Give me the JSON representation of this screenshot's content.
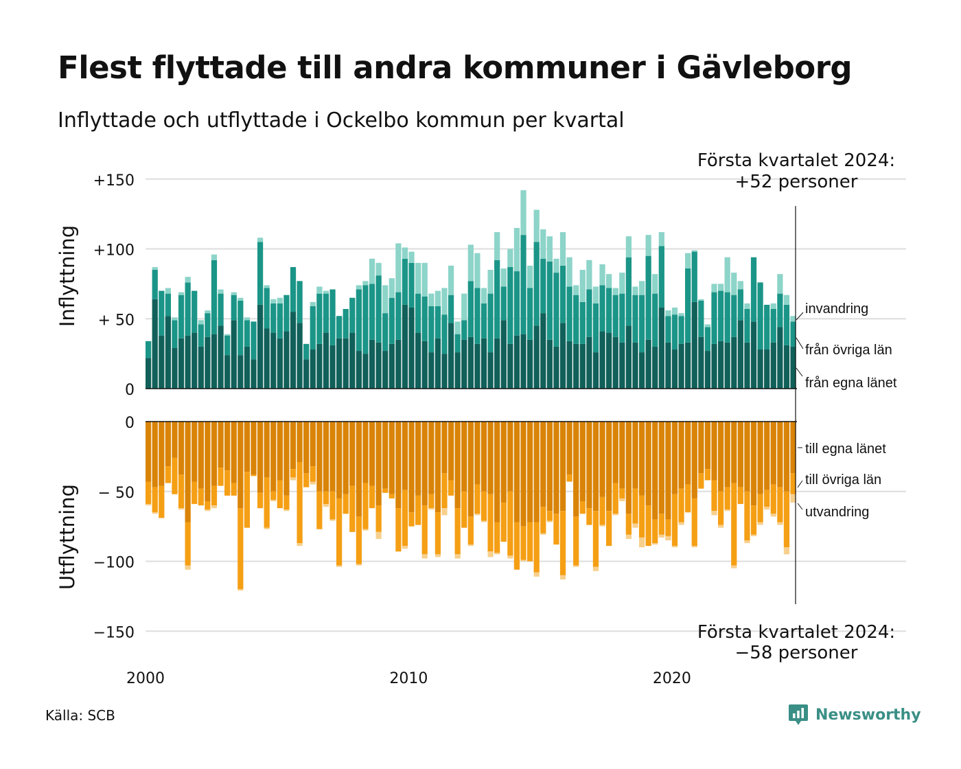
{
  "title": "Flest flyttade till andra kommuner i Gävleborg",
  "subtitle": "Inflyttade och utflyttade i Ockelbo kommun per kvartal",
  "source": "Källa: SCB",
  "brand": "Newsworthy",
  "colors": {
    "in_egna": "#11605a",
    "in_ovriga": "#1b9587",
    "in_invandring": "#8dd4c9",
    "out_egna": "#d98408",
    "out_ovriga": "#f59f15",
    "out_utvandring": "#f7d08e",
    "grid": "#dddddd",
    "brand": "#3a8f86"
  },
  "chart_data": [
    {
      "type": "bar",
      "stacked": true,
      "ylabel": "Inflyttning",
      "ylim": [
        0,
        150
      ],
      "yticks": [
        {
          "value": 0,
          "label": "0"
        },
        {
          "value": 50,
          "label": "+ 50"
        },
        {
          "value": 100,
          "label": "+100"
        },
        {
          "value": 150,
          "label": "+150"
        }
      ],
      "annotation": [
        "Första kvartalet 2024:",
        "+52 personer"
      ],
      "series": [
        {
          "name": "från egna länet",
          "values": [
            22,
            64,
            38,
            52,
            29,
            36,
            38,
            40,
            30,
            37,
            39,
            45,
            24,
            49,
            24,
            30,
            21,
            60,
            43,
            40,
            36,
            41,
            55,
            47,
            21,
            28,
            32,
            40,
            31,
            36,
            36,
            40,
            27,
            25,
            35,
            33,
            27,
            32,
            35,
            60,
            58,
            40,
            34,
            26,
            36,
            25,
            47,
            26,
            35,
            37,
            32,
            36,
            26,
            36,
            49,
            32,
            38,
            39,
            35,
            45,
            54,
            35,
            30,
            47,
            34,
            32,
            32,
            37,
            26,
            41,
            40,
            37,
            33,
            45,
            33,
            26,
            35,
            30,
            58,
            33,
            28,
            32,
            33,
            62,
            37,
            27,
            32,
            34,
            33,
            37,
            49,
            33,
            48,
            28,
            28,
            33,
            44,
            31,
            30
          ]
        },
        {
          "name": "från övriga län",
          "values": [
            12,
            21,
            32,
            16,
            20,
            31,
            38,
            30,
            16,
            17,
            53,
            23,
            14,
            18,
            39,
            19,
            27,
            45,
            29,
            21,
            25,
            26,
            32,
            30,
            11,
            31,
            36,
            28,
            40,
            16,
            21,
            25,
            44,
            49,
            40,
            48,
            27,
            33,
            34,
            33,
            32,
            28,
            32,
            33,
            23,
            28,
            20,
            13,
            14,
            40,
            40,
            25,
            42,
            56,
            24,
            55,
            46,
            71,
            37,
            60,
            39,
            56,
            53,
            41,
            39,
            35,
            30,
            34,
            35,
            33,
            32,
            30,
            35,
            49,
            34,
            41,
            60,
            38,
            44,
            19,
            25,
            20,
            53,
            36,
            26,
            17,
            37,
            36,
            36,
            30,
            22,
            24,
            46,
            48,
            32,
            24,
            24,
            29,
            18
          ]
        },
        {
          "name": "invandring",
          "values": [
            0,
            2,
            0,
            4,
            2,
            2,
            4,
            0,
            3,
            2,
            4,
            3,
            1,
            2,
            2,
            2,
            0,
            3,
            2,
            3,
            4,
            0,
            0,
            0,
            0,
            3,
            5,
            2,
            0,
            0,
            0,
            0,
            3,
            3,
            18,
            9,
            20,
            14,
            35,
            8,
            8,
            22,
            24,
            9,
            11,
            19,
            21,
            9,
            19,
            26,
            25,
            11,
            17,
            20,
            13,
            13,
            31,
            32,
            16,
            23,
            21,
            18,
            10,
            24,
            21,
            7,
            23,
            21,
            12,
            15,
            10,
            5,
            15,
            15,
            6,
            10,
            15,
            14,
            10,
            4,
            5,
            2,
            11,
            1,
            1,
            2,
            6,
            5,
            25,
            16,
            6,
            4,
            0,
            0,
            0,
            4,
            14,
            7,
            4
          ]
        }
      ]
    },
    {
      "type": "bar",
      "stacked": true,
      "ylabel": "Utflyttning",
      "ylim": [
        -150,
        0
      ],
      "yticks": [
        {
          "value": -150,
          "label": "−150"
        },
        {
          "value": -100,
          "label": "−100"
        },
        {
          "value": -50,
          "label": "− 50"
        },
        {
          "value": 0,
          "label": "0"
        }
      ],
      "annotation": [
        "Första kvartalet 2024:",
        "−58 personer"
      ],
      "x_start": 2000,
      "xticks": [
        {
          "value": 2000,
          "label": "2000"
        },
        {
          "value": 2010,
          "label": "2010"
        },
        {
          "value": 2020,
          "label": "2020"
        }
      ],
      "series": [
        {
          "name": "till egna länet",
          "values": [
            -43,
            -47,
            -46,
            -32,
            -26,
            -38,
            -72,
            -43,
            -48,
            -57,
            -46,
            -33,
            -35,
            -44,
            -62,
            -36,
            -38,
            -51,
            -40,
            -50,
            -42,
            -53,
            -34,
            -29,
            -37,
            -32,
            -50,
            -50,
            -50,
            -55,
            -52,
            -46,
            -68,
            -44,
            -46,
            -60,
            -48,
            -52,
            -62,
            -49,
            -65,
            -53,
            -60,
            -52,
            -65,
            -37,
            -42,
            -62,
            -50,
            -68,
            -45,
            -50,
            -52,
            -72,
            -58,
            -50,
            -72,
            -75,
            -72,
            -72,
            -61,
            -64,
            -66,
            -64,
            -38,
            -68,
            -57,
            -62,
            -64,
            -54,
            -64,
            -44,
            -48,
            -66,
            -48,
            -53,
            -60,
            -70,
            -66,
            -70,
            -52,
            -48,
            -45,
            -55,
            -37,
            -34,
            -42,
            -50,
            -47,
            -44,
            -47,
            -50,
            -60,
            -52,
            -49,
            -45,
            -47,
            -50,
            -37
          ]
        },
        {
          "name": "till övriga län",
          "values": [
            -16,
            -18,
            -23,
            -12,
            -26,
            -24,
            -31,
            -16,
            -12,
            -6,
            -14,
            -13,
            -18,
            -9,
            -58,
            -40,
            -1,
            -11,
            -36,
            -6,
            -20,
            -10,
            -6,
            -58,
            -10,
            -11,
            -27,
            -9,
            -20,
            -48,
            -14,
            -33,
            -34,
            -33,
            -16,
            -19,
            -3,
            -3,
            -31,
            -40,
            -10,
            -21,
            -35,
            -10,
            -30,
            -25,
            -11,
            -33,
            -26,
            -20,
            -21,
            -21,
            -41,
            -22,
            -28,
            -46,
            -34,
            -24,
            -28,
            -36,
            -19,
            -7,
            -22,
            -46,
            -5,
            -35,
            -9,
            -12,
            -40,
            -20,
            -25,
            -22,
            -7,
            -15,
            -25,
            -30,
            -29,
            -17,
            -15,
            -12,
            -37,
            -24,
            -20,
            -34,
            -11,
            -8,
            -22,
            -24,
            -16,
            -59,
            -12,
            -35,
            -21,
            -20,
            -12,
            -21,
            -25,
            -40,
            -15
          ]
        },
        {
          "name": "utvandring",
          "values": [
            -1,
            -1,
            0,
            0,
            0,
            -1,
            -3,
            0,
            0,
            -1,
            -2,
            0,
            0,
            0,
            -1,
            0,
            0,
            0,
            -1,
            -1,
            0,
            -1,
            -2,
            -2,
            0,
            -2,
            0,
            -2,
            -1,
            -1,
            0,
            0,
            -1,
            -1,
            0,
            -5,
            0,
            0,
            0,
            -2,
            0,
            0,
            -3,
            -1,
            -2,
            -5,
            0,
            -3,
            0,
            -1,
            -1,
            -1,
            -4,
            -1,
            0,
            -2,
            0,
            -1,
            0,
            -3,
            -1,
            -1,
            0,
            -3,
            0,
            -1,
            0,
            0,
            -3,
            -1,
            0,
            -1,
            -2,
            -3,
            -3,
            -7,
            0,
            -1,
            -2,
            -3,
            -1,
            -2,
            0,
            -1,
            0,
            0,
            -3,
            -2,
            -1,
            -2,
            0,
            -2,
            -1,
            -2,
            -2,
            -2,
            -2,
            -5,
            -6
          ]
        }
      ]
    }
  ],
  "legend_in": [
    "invandring",
    "från övriga län",
    "från egna länet"
  ],
  "legend_out": [
    "till egna länet",
    "till övriga län",
    "utvandring"
  ]
}
